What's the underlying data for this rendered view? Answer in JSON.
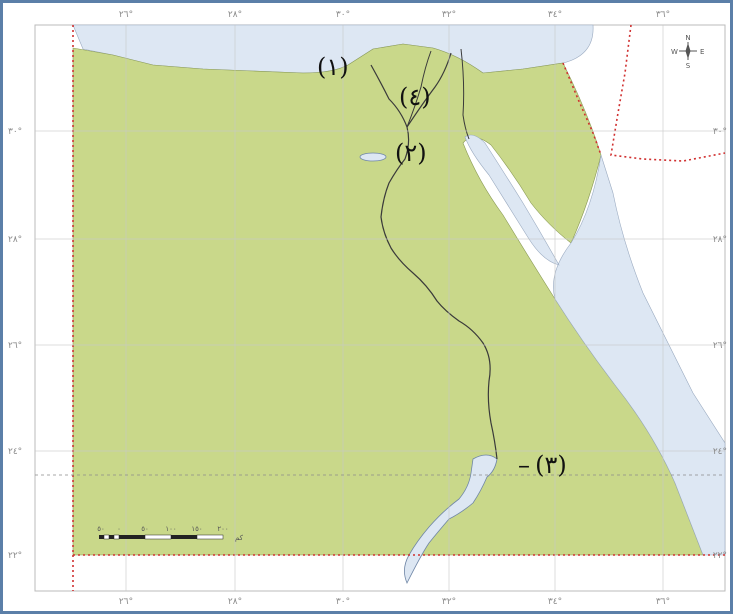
{
  "map": {
    "longitude_ticks": [
      "٢٦°",
      "٢٨°",
      "٣٠°",
      "٣٢°",
      "٣٤°",
      "٣٦°"
    ],
    "latitude_ticks": [
      "٣٠°",
      "٢٨°",
      "٢٦°",
      "٢٤°",
      "٢٢°"
    ],
    "labels": {
      "one": "(١)",
      "two": "(٢)",
      "three": "(٣)",
      "four": "(٤)"
    },
    "compass": {
      "n": "N",
      "s": "S",
      "e": "E",
      "w": "W"
    },
    "scale_numbers": [
      "٥٠",
      "٠",
      "٥٠",
      "١٠٠",
      "١٥٠",
      "٢٠٠"
    ],
    "scale_unit": "كم",
    "colors": {
      "land": "#c9d88a",
      "water": "#dde7f3",
      "border": "#d03030",
      "river": "#3a3a3a",
      "grid": "#c8c8c8",
      "frame": "#5b7fa8"
    }
  }
}
